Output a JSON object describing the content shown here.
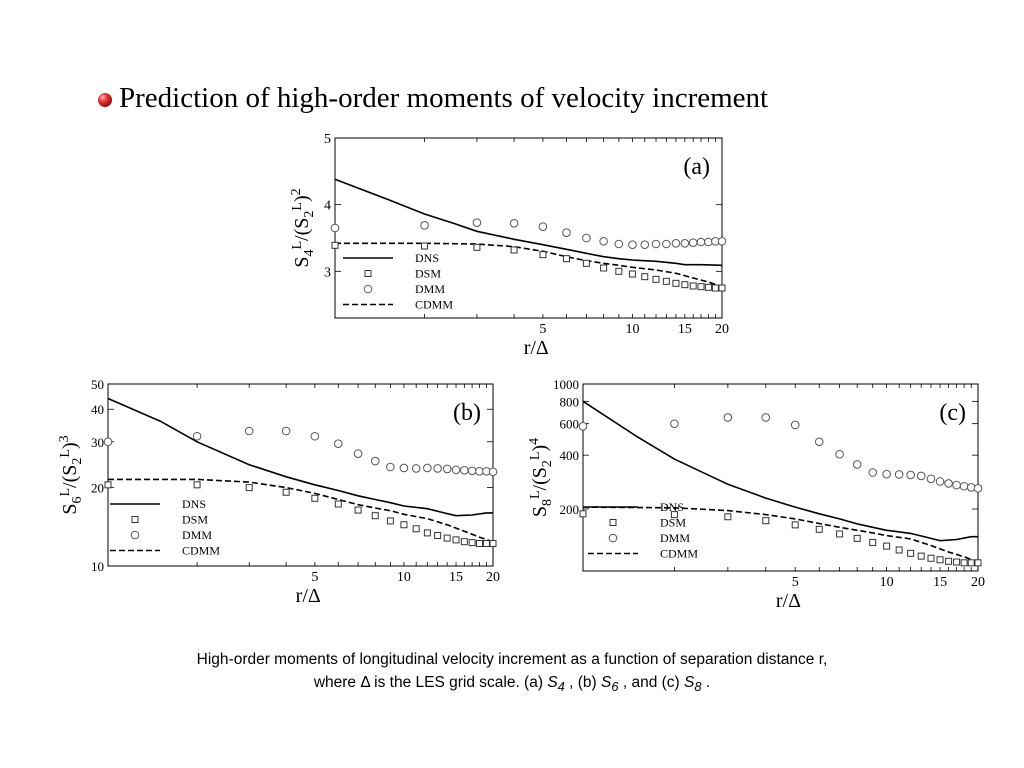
{
  "title": "Prediction of high-order moments of velocity increment",
  "caption": {
    "line1": "High-order moments of longitudinal velocity increment as a function of separation distance r,",
    "line2_a": "where ",
    "delta": "Δ",
    "line2_b": " is the LES grid scale. (a) ",
    "s4": "S",
    "s4_sub": "4",
    "line2_c": " , (b) ",
    "s6": "S",
    "s6_sub": "6",
    "line2_d": " , and (c) ",
    "s8": "S",
    "s8_sub": "8",
    "line2_e": " ."
  },
  "chart_data": [
    {
      "type": "line",
      "panel_label": "(a)",
      "xlabel": "r/Δ",
      "ylabel": "S4L/(S2L)2",
      "xscale": "log",
      "yscale": "linear",
      "xlim": [
        1,
        20
      ],
      "ylim": [
        2.3,
        5
      ],
      "x_ticks": [
        "5",
        "10",
        "15",
        "20"
      ],
      "y_ticks": [
        "3",
        "4",
        "5"
      ],
      "legend_position": "bottom-left",
      "legend": [
        "DNS",
        "DSM",
        "DMM",
        "CDMM"
      ],
      "series": [
        {
          "name": "DNS",
          "style": "solid",
          "points": [
            [
              1,
              4.38
            ],
            [
              1.5,
              4.08
            ],
            [
              2,
              3.86
            ],
            [
              2.5,
              3.72
            ],
            [
              3,
              3.6
            ],
            [
              4,
              3.48
            ],
            [
              5,
              3.4
            ],
            [
              6,
              3.33
            ],
            [
              7,
              3.27
            ],
            [
              8,
              3.22
            ],
            [
              9,
              3.19
            ],
            [
              10,
              3.17
            ],
            [
              12,
              3.15
            ],
            [
              14,
              3.12
            ],
            [
              15,
              3.1
            ],
            [
              17,
              3.1
            ],
            [
              20,
              3.09
            ]
          ]
        },
        {
          "name": "CDMM",
          "style": "dashed",
          "points": [
            [
              1,
              3.42
            ],
            [
              2,
              3.42
            ],
            [
              3,
              3.41
            ],
            [
              4,
              3.37
            ],
            [
              5,
              3.3
            ],
            [
              6,
              3.22
            ],
            [
              7,
              3.16
            ],
            [
              8,
              3.12
            ],
            [
              9,
              3.09
            ],
            [
              10,
              3.06
            ],
            [
              12,
              3.02
            ],
            [
              14,
              2.97
            ],
            [
              16,
              2.9
            ],
            [
              18,
              2.84
            ],
            [
              20,
              2.77
            ]
          ]
        },
        {
          "name": "DSM",
          "marker": "square",
          "points": [
            [
              1,
              3.39
            ],
            [
              2,
              3.38
            ],
            [
              3,
              3.36
            ],
            [
              4,
              3.32
            ],
            [
              5,
              3.25
            ],
            [
              6,
              3.19
            ],
            [
              7,
              3.12
            ],
            [
              8,
              3.05
            ],
            [
              9,
              3.0
            ],
            [
              10,
              2.96
            ],
            [
              11,
              2.92
            ],
            [
              12,
              2.88
            ],
            [
              13,
              2.85
            ],
            [
              14,
              2.82
            ],
            [
              15,
              2.8
            ],
            [
              16,
              2.78
            ],
            [
              17,
              2.77
            ],
            [
              18,
              2.76
            ],
            [
              19,
              2.75
            ],
            [
              20,
              2.75
            ]
          ]
        },
        {
          "name": "DMM",
          "marker": "circle",
          "points": [
            [
              1,
              3.65
            ],
            [
              2,
              3.69
            ],
            [
              3,
              3.73
            ],
            [
              4,
              3.72
            ],
            [
              5,
              3.67
            ],
            [
              6,
              3.58
            ],
            [
              7,
              3.5
            ],
            [
              8,
              3.45
            ],
            [
              9,
              3.41
            ],
            [
              10,
              3.4
            ],
            [
              11,
              3.4
            ],
            [
              12,
              3.41
            ],
            [
              13,
              3.41
            ],
            [
              14,
              3.42
            ],
            [
              15,
              3.42
            ],
            [
              16,
              3.43
            ],
            [
              17,
              3.44
            ],
            [
              18,
              3.44
            ],
            [
              19,
              3.45
            ],
            [
              20,
              3.45
            ]
          ]
        }
      ]
    },
    {
      "type": "line",
      "panel_label": "(b)",
      "xlabel": "r/Δ",
      "ylabel": "S6L/(S2L)3",
      "xscale": "log",
      "yscale": "log",
      "xlim": [
        1,
        20
      ],
      "ylim": [
        10,
        50
      ],
      "x_ticks": [
        "5",
        "10",
        "15",
        "20"
      ],
      "y_ticks": [
        "10",
        "20",
        "30",
        "40",
        "50"
      ],
      "legend_position": "bottom-left",
      "legend": [
        "DNS",
        "DSM",
        "DMM",
        "CDMM"
      ],
      "series": [
        {
          "name": "DNS",
          "style": "solid",
          "points": [
            [
              1,
              44
            ],
            [
              1.5,
              36
            ],
            [
              2,
              30
            ],
            [
              3,
              24.5
            ],
            [
              4,
              22
            ],
            [
              5,
              20.5
            ],
            [
              6,
              19.5
            ],
            [
              7,
              18.6
            ],
            [
              8,
              18
            ],
            [
              9,
              17.5
            ],
            [
              10,
              17
            ],
            [
              12,
              16.6
            ],
            [
              14,
              15.9
            ],
            [
              15,
              15.6
            ],
            [
              17,
              15.7
            ],
            [
              19,
              16
            ],
            [
              20,
              16
            ]
          ]
        },
        {
          "name": "CDMM",
          "style": "dashed",
          "points": [
            [
              1,
              21.5
            ],
            [
              2,
              21.5
            ],
            [
              3,
              21
            ],
            [
              4,
              20
            ],
            [
              5,
              19
            ],
            [
              6,
              18
            ],
            [
              7,
              17.2
            ],
            [
              8,
              16.7
            ],
            [
              9,
              16.3
            ],
            [
              10,
              15.8
            ],
            [
              12,
              15.2
            ],
            [
              14,
              14.4
            ],
            [
              16,
              13.6
            ],
            [
              18,
              12.9
            ],
            [
              20,
              12.4
            ]
          ]
        },
        {
          "name": "DSM",
          "marker": "square",
          "points": [
            [
              1,
              20.5
            ],
            [
              2,
              20.5
            ],
            [
              3,
              20
            ],
            [
              4,
              19.2
            ],
            [
              5,
              18.2
            ],
            [
              6,
              17.3
            ],
            [
              7,
              16.4
            ],
            [
              8,
              15.6
            ],
            [
              9,
              14.9
            ],
            [
              10,
              14.4
            ],
            [
              11,
              13.9
            ],
            [
              12,
              13.4
            ],
            [
              13,
              13.1
            ],
            [
              14,
              12.8
            ],
            [
              15,
              12.6
            ],
            [
              16,
              12.4
            ],
            [
              17,
              12.3
            ],
            [
              18,
              12.2
            ],
            [
              19,
              12.2
            ],
            [
              20,
              12.2
            ]
          ]
        },
        {
          "name": "DMM",
          "marker": "circle",
          "points": [
            [
              1,
              30
            ],
            [
              2,
              31.5
            ],
            [
              3,
              33
            ],
            [
              4,
              33
            ],
            [
              5,
              31.5
            ],
            [
              6,
              29.5
            ],
            [
              7,
              27
            ],
            [
              8,
              25.3
            ],
            [
              9,
              24
            ],
            [
              10,
              23.8
            ],
            [
              11,
              23.7
            ],
            [
              12,
              23.8
            ],
            [
              13,
              23.7
            ],
            [
              14,
              23.6
            ],
            [
              15,
              23.4
            ],
            [
              16,
              23.3
            ],
            [
              17,
              23.2
            ],
            [
              18,
              23.1
            ],
            [
              19,
              23.1
            ],
            [
              20,
              23
            ]
          ]
        }
      ]
    },
    {
      "type": "line",
      "panel_label": "(c)",
      "xlabel": "r/Δ",
      "ylabel": "S8L/(S2L)4",
      "xscale": "log",
      "yscale": "log",
      "xlim": [
        1,
        20
      ],
      "ylim": [
        90,
        1000
      ],
      "x_ticks": [
        "5",
        "10",
        "15",
        "20"
      ],
      "y_ticks": [
        "200",
        "400",
        "600",
        "800",
        "1000"
      ],
      "legend_position": "bottom-left",
      "legend": [
        "DNS",
        "DSM",
        "DMM",
        "CDMM"
      ],
      "series": [
        {
          "name": "DNS",
          "style": "solid",
          "points": [
            [
              1,
              800
            ],
            [
              1.5,
              510
            ],
            [
              2,
              380
            ],
            [
              3,
              275
            ],
            [
              4,
              230
            ],
            [
              5,
              205
            ],
            [
              6,
              188
            ],
            [
              7,
              176
            ],
            [
              8,
              165
            ],
            [
              9,
              158
            ],
            [
              10,
              152
            ],
            [
              12,
              146
            ],
            [
              14,
              137
            ],
            [
              15,
              133
            ],
            [
              17,
              135
            ],
            [
              19,
              140
            ],
            [
              20,
              140
            ]
          ]
        },
        {
          "name": "CDMM",
          "style": "dashed",
          "points": [
            [
              1,
              205
            ],
            [
              2,
              203
            ],
            [
              3,
              196
            ],
            [
              4,
              186
            ],
            [
              5,
              176
            ],
            [
              6,
              166
            ],
            [
              7,
              158
            ],
            [
              8,
              152
            ],
            [
              9,
              147
            ],
            [
              10,
              142
            ],
            [
              12,
              136
            ],
            [
              14,
              125
            ],
            [
              16,
              115
            ],
            [
              18,
              108
            ],
            [
              20,
              101
            ]
          ]
        },
        {
          "name": "DSM",
          "marker": "square",
          "points": [
            [
              1,
              188
            ],
            [
              2,
              186
            ],
            [
              3,
              181
            ],
            [
              4,
              172
            ],
            [
              5,
              163
            ],
            [
              6,
              154
            ],
            [
              7,
              145
            ],
            [
              8,
              137
            ],
            [
              9,
              130
            ],
            [
              10,
              124
            ],
            [
              11,
              118
            ],
            [
              12,
              113
            ],
            [
              13,
              109
            ],
            [
              14,
              106
            ],
            [
              15,
              104
            ],
            [
              16,
              102
            ],
            [
              17,
              101
            ],
            [
              18,
              100
            ],
            [
              19,
              100
            ],
            [
              20,
              100
            ]
          ]
        },
        {
          "name": "DMM",
          "marker": "circle",
          "points": [
            [
              1,
              580
            ],
            [
              2,
              600
            ],
            [
              3,
              650
            ],
            [
              4,
              650
            ],
            [
              5,
              590
            ],
            [
              6,
              475
            ],
            [
              7,
              405
            ],
            [
              8,
              355
            ],
            [
              9,
              320
            ],
            [
              10,
              313
            ],
            [
              11,
              312
            ],
            [
              12,
              310
            ],
            [
              13,
              306
            ],
            [
              14,
              295
            ],
            [
              15,
              285
            ],
            [
              16,
              278
            ],
            [
              17,
              272
            ],
            [
              18,
              268
            ],
            [
              19,
              264
            ],
            [
              20,
              261
            ]
          ]
        }
      ]
    }
  ]
}
